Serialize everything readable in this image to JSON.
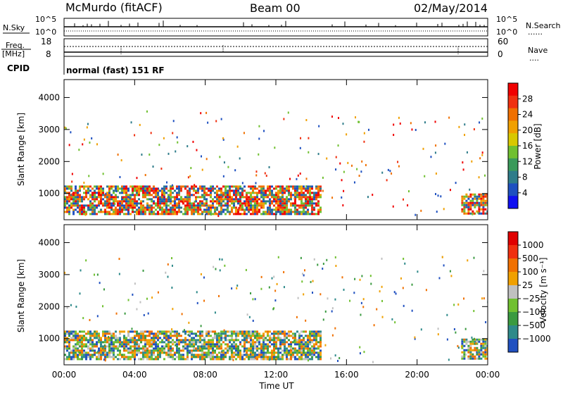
{
  "header": {
    "station": "McMurdo (fitACF)",
    "beam": "Beam 00",
    "date": "02/May/2014"
  },
  "top_panels": {
    "nsky_label": "N.Sky",
    "nsearch_label": "N.Search",
    "nsearch_marker": "......",
    "noise_ticks_left": [
      "10^5",
      "10^0"
    ],
    "noise_ticks_right": [
      "10^5",
      "10^0"
    ],
    "freq_label_top": "Freq.",
    "freq_label_unit": "[MHz]",
    "freq_ticks": [
      "18",
      "8"
    ],
    "nave_label": "Nave",
    "nave_marker": "....",
    "nave_ticks": [
      "60",
      "0"
    ],
    "cpid_label": "CPID",
    "cpid_text": "normal (fast) 151 RF"
  },
  "chart_data": [
    {
      "type": "heatmap",
      "id": "power",
      "ylabel": "Slant Range [km]",
      "xlabel": "",
      "x_ticks": [
        "00:00",
        "04:00",
        "08:00",
        "12:00",
        "16:00",
        "20:00",
        "00:00"
      ],
      "x_range_hours": [
        0,
        24
      ],
      "y_ticks": [
        1000,
        2000,
        3000,
        4000
      ],
      "ylim": [
        180,
        4560
      ],
      "colorbar": {
        "label": "Power [dB]",
        "ticks": [
          "4",
          "8",
          "12",
          "16",
          "20",
          "24",
          "28"
        ],
        "colors": [
          "#1010f0",
          "#1e50c0",
          "#2e7c8a",
          "#3a9a5a",
          "#70c030",
          "#d8c800",
          "#f0a000",
          "#f07000",
          "#f03010",
          "#f00000"
        ]
      },
      "regions": [
        {
          "t0": 0.0,
          "t1": 14.5,
          "r0": 350,
          "r1": 1250,
          "value": "echo"
        },
        {
          "t0": 22.5,
          "t1": 24.0,
          "r0": 350,
          "r1": 1000,
          "value": "echo"
        }
      ]
    },
    {
      "type": "heatmap",
      "id": "velocity",
      "ylabel": "Slant Range [km]",
      "xlabel": "Time UT",
      "x_ticks": [
        "00:00",
        "04:00",
        "08:00",
        "12:00",
        "16:00",
        "20:00",
        "00:00"
      ],
      "x_range_hours": [
        0,
        24
      ],
      "y_ticks": [
        1000,
        2000,
        3000,
        4000
      ],
      "ylim": [
        180,
        4560
      ],
      "colorbar": {
        "label": "Velocity [m s⁻¹]",
        "ticks": [
          "1000",
          "500",
          "100",
          "25",
          "−25",
          "−100",
          "−500",
          "−1000"
        ],
        "colors": [
          "#2050c0",
          "#2e8a8a",
          "#3a9a40",
          "#70c030",
          "#c0c0c0",
          "#f0a000",
          "#f07000",
          "#f03010",
          "#e00000"
        ]
      },
      "regions": [
        {
          "t0": 0.0,
          "t1": 14.5,
          "r0": 350,
          "r1": 1250,
          "value": "echo"
        },
        {
          "t0": 22.5,
          "t1": 24.0,
          "r0": 350,
          "r1": 1000,
          "value": "echo"
        }
      ]
    }
  ]
}
